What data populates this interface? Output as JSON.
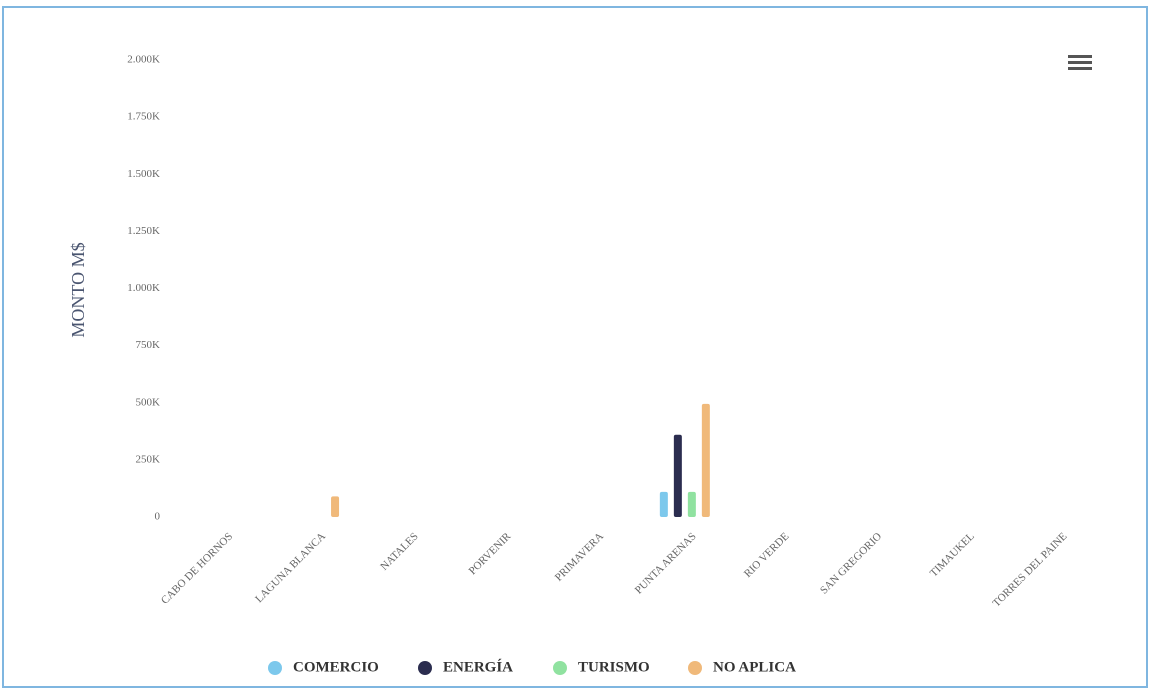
{
  "chart_data": {
    "type": "bar",
    "y_axis_label": "MONTO M$",
    "categories": [
      "CABO DE HORNOS",
      "LAGUNA BLANCA",
      "NATALES",
      "PORVENIR",
      "PRIMAVERA",
      "PUNTA ARENAS",
      "RIO VERDE",
      "SAN GREGORIO",
      "TIMAUKEL",
      "TORRES DEL PAINE"
    ],
    "series": [
      {
        "name": "COMERCIO",
        "color": "#7cc8ec",
        "values": [
          0,
          0,
          0,
          0,
          0,
          110000,
          0,
          0,
          0,
          0
        ]
      },
      {
        "name": "ENERGÍA",
        "color": "#2b2d4f",
        "values": [
          0,
          0,
          0,
          0,
          0,
          360000,
          0,
          0,
          0,
          0
        ]
      },
      {
        "name": "TURISMO",
        "color": "#90e2a0",
        "values": [
          0,
          0,
          0,
          0,
          0,
          110000,
          0,
          0,
          0,
          0
        ]
      },
      {
        "name": "NO APLICA",
        "color": "#f0b97a",
        "values": [
          0,
          90000,
          0,
          0,
          0,
          495000,
          0,
          0,
          0,
          0
        ]
      }
    ],
    "ylim": [
      0,
      2000000
    ],
    "yticks": [
      0,
      {
        "value": 250000,
        "label": "250K"
      },
      {
        "value": 500000,
        "label": "500K"
      },
      {
        "value": 750000,
        "label": "750K"
      },
      {
        "value": 1000000,
        "label": "1.000K"
      },
      {
        "value": 1250000,
        "label": "1.250K"
      },
      {
        "value": 1500000,
        "label": "1.500K"
      },
      {
        "value": 1750000,
        "label": "1.750K"
      },
      {
        "value": 2000000,
        "label": "2.000K"
      }
    ],
    "grid": false,
    "legend": "bottom"
  }
}
